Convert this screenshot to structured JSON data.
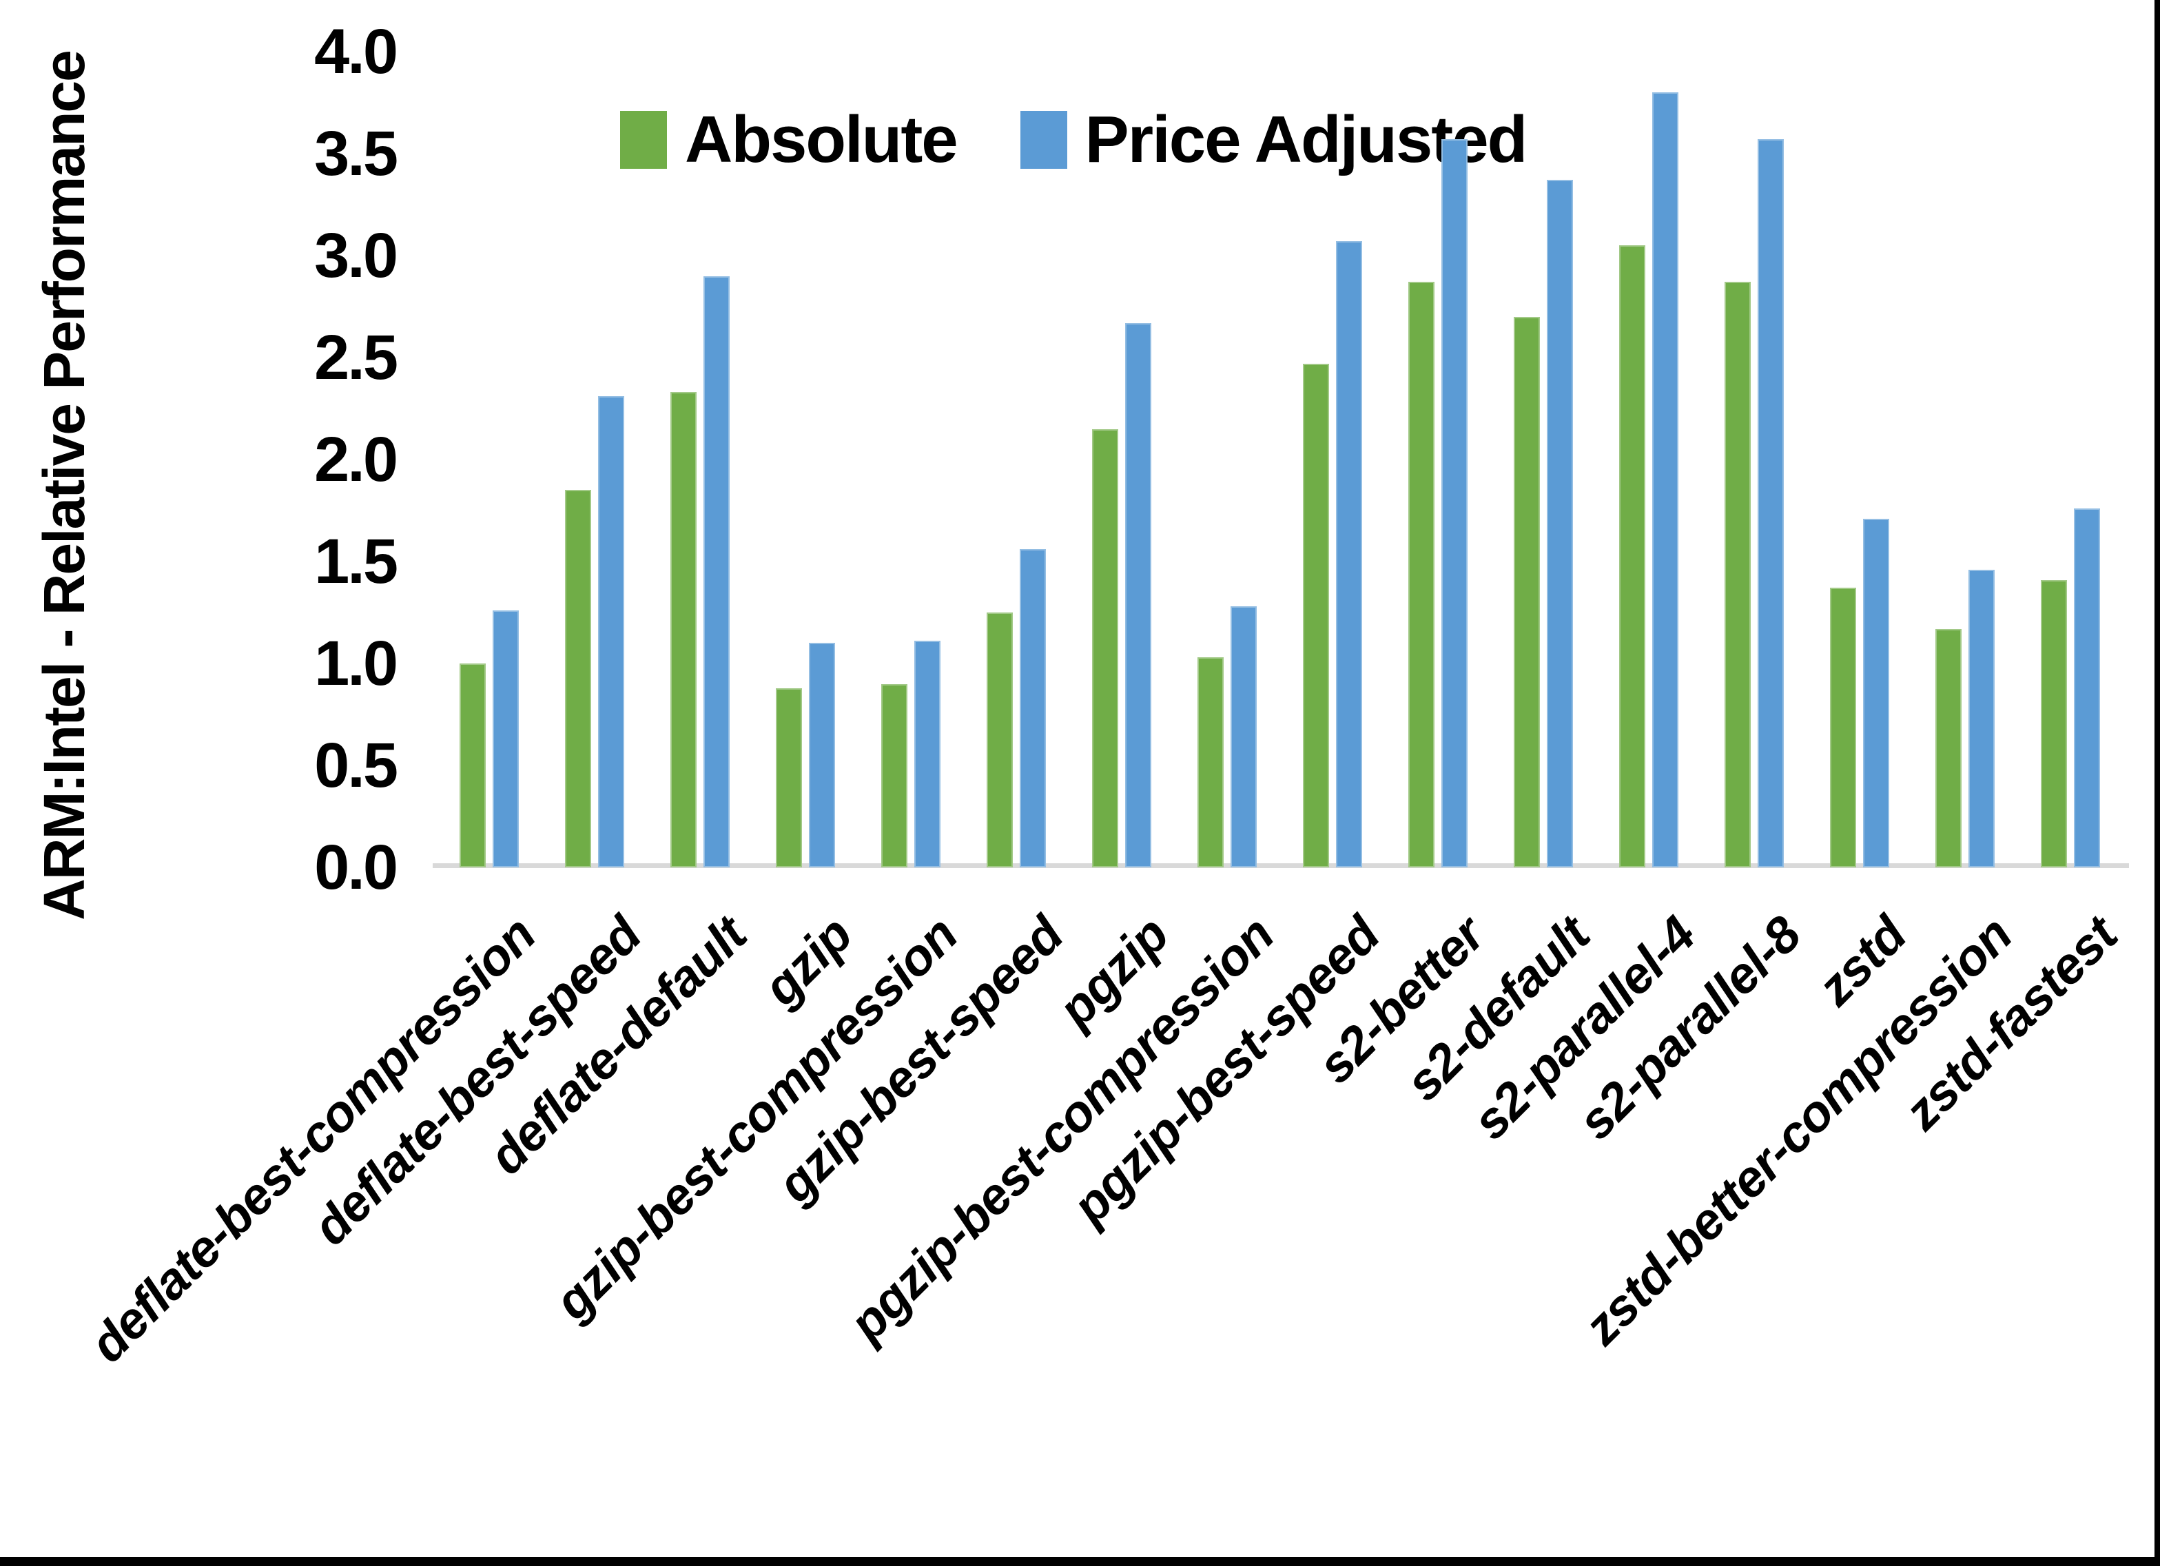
{
  "chart_data": {
    "type": "bar",
    "title": "",
    "ylabel": "ARM:Intel - Relative Performance",
    "xlabel": "",
    "ylim": [
      0,
      4
    ],
    "ytick_step": 0.5,
    "ytick_labels": [
      "0.0",
      "0.5",
      "1.0",
      "1.5",
      "2.0",
      "2.5",
      "3.0",
      "3.5",
      "4.0"
    ],
    "grid": false,
    "legend_position": "top-center",
    "categories": [
      "deflate-best-compression",
      "deflate-best-speed",
      "deflate-default",
      "gzip",
      "gzip-best-compression",
      "gzip-best-speed",
      "pgzip",
      "pgzip-best-compression",
      "pgzip-best-speed",
      "s2-better",
      "s2-default",
      "s2-parallel-4",
      "s2-parallel-8",
      "zstd",
      "zstd-better-compression",
      "zstd-fastest"
    ],
    "series": [
      {
        "name": "Absolute",
        "color": "#70AD47",
        "values": [
          1.0,
          1.85,
          2.33,
          0.88,
          0.9,
          1.25,
          2.15,
          1.03,
          2.47,
          2.87,
          2.7,
          3.05,
          2.87,
          1.37,
          1.17,
          1.41
        ]
      },
      {
        "name": "Price Adjusted",
        "color": "#5B9BD5",
        "values": [
          1.26,
          2.31,
          2.9,
          1.1,
          1.11,
          1.56,
          2.67,
          1.28,
          3.07,
          3.57,
          3.37,
          3.8,
          3.57,
          1.71,
          1.46,
          1.76
        ]
      }
    ],
    "colors": {
      "axis_line": "#D9D9D9",
      "text": "#000000",
      "frame": "#000000",
      "background": "#FFFFFF"
    }
  }
}
